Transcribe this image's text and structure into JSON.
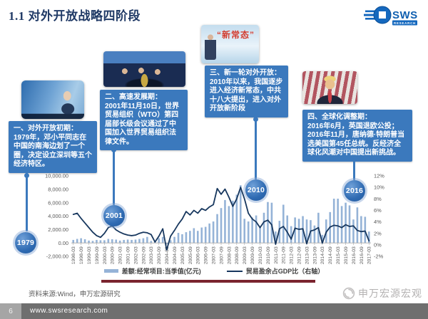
{
  "page": {
    "title": "1.1 对外开放战略四阶段",
    "source_note": "资料来源:Wind，申万宏源研究",
    "brand": {
      "logo_text": "SWS",
      "logo_sub": "RESEARCH",
      "wechat_name": "申万宏源宏观"
    },
    "footer": {
      "page_number": "6",
      "url": "www.swsresearch.com"
    }
  },
  "stages": [
    {
      "year": "1979",
      "heading": "一、对外开放初期：",
      "body": "1979年，邓小平同志在中国的南海边划了一个圈，决定设立深圳等五个经济特区。",
      "photo": "deng-xiaoping-shenzhen"
    },
    {
      "year": "2001",
      "heading": "二、高速发展期：",
      "body": "2001年11月10日，世界贸易组织（WTO）第四届部长级会议通过了中国加入世界贸易组织法律文件。",
      "photo": "china-joins-wto-ceremony"
    },
    {
      "year": "2010",
      "heading": "三、新一轮对外开放：",
      "body": "2010年以来，我国逐步进入经济新常态，中共十八大提出，进入对外开放新阶段",
      "photo": "new-normal-illustration",
      "photo_caption": "“新常态”"
    },
    {
      "year": "2016",
      "heading": "四、全球化调整期：",
      "body": "2016年6月，英国退欧公投；2016年11月，唐纳德·特朗普当选美国第45任总统。反经济全球化风潮对中国提出新挑战。",
      "photo": "trump-us-flag"
    }
  ],
  "chart_data": {
    "type": "bar",
    "subtype": "bar+line dual-axis combo",
    "gridlines": false,
    "legend_position": "bottom",
    "x_tick_every": 2,
    "timeline_markers": [
      "1979",
      "2001",
      "2010",
      "2016"
    ],
    "x": [
      "1998-03",
      "1998-06",
      "1998-09",
      "1998-12",
      "1999-03",
      "1999-06",
      "1999-09",
      "1999-12",
      "2000-03",
      "2000-06",
      "2000-09",
      "2000-12",
      "2001-03",
      "2001-06",
      "2001-09",
      "2001-12",
      "2002-03",
      "2002-06",
      "2002-09",
      "2002-12",
      "2003-03",
      "2003-06",
      "2003-09",
      "2003-12",
      "2004-03",
      "2004-06",
      "2004-09",
      "2004-12",
      "2005-03",
      "2005-06",
      "2005-09",
      "2005-12",
      "2006-03",
      "2006-06",
      "2006-09",
      "2006-12",
      "2007-03",
      "2007-06",
      "2007-09",
      "2007-12",
      "2008-03",
      "2008-06",
      "2008-09",
      "2008-12",
      "2009-03",
      "2009-06",
      "2009-09",
      "2009-12",
      "2010-03",
      "2010-06",
      "2010-09",
      "2010-12",
      "2011-03",
      "2011-06",
      "2011-09",
      "2011-12",
      "2012-03",
      "2012-06",
      "2012-09",
      "2012-12",
      "2013-03",
      "2013-06",
      "2013-09",
      "2013-12",
      "2014-03",
      "2014-06",
      "2014-09",
      "2014-12",
      "2015-03",
      "2015-06",
      "2015-09",
      "2015-12",
      "2016-03",
      "2016-06",
      "2016-09",
      "2016-12",
      "2017-03"
    ],
    "series": [
      {
        "name": "差额:经常项目:当季值(亿元)",
        "type": "bar",
        "axis": "left",
        "color": "#95b3d7",
        "values": [
          450,
          600,
          700,
          550,
          350,
          300,
          450,
          400,
          400,
          600,
          550,
          500,
          350,
          450,
          500,
          450,
          500,
          600,
          700,
          900,
          300,
          250,
          700,
          900,
          -200,
          400,
          900,
          1500,
          1300,
          1600,
          1800,
          2200,
          1800,
          2300,
          2400,
          2900,
          3200,
          4300,
          5200,
          6400,
          5500,
          6300,
          7200,
          8600,
          3600,
          3200,
          3800,
          4100,
          2400,
          4500,
          6100,
          6000,
          1700,
          3300,
          5700,
          4100,
          2500,
          3800,
          3600,
          4000,
          3500,
          3400,
          2600,
          4500,
          1200,
          3500,
          4600,
          6600,
          6600,
          5500,
          6000,
          5600,
          3500,
          5300,
          4000,
          3900,
          1700
        ]
      },
      {
        "name": "贸易盈余占GDP比（右轴）",
        "type": "line",
        "axis": "right",
        "color": "#17375e",
        "values": [
          5.3,
          5.5,
          4.6,
          3.8,
          3.0,
          2.2,
          1.6,
          1.3,
          2.0,
          3.0,
          3.3,
          2.6,
          2.2,
          1.9,
          1.7,
          1.6,
          1.7,
          2.0,
          2.2,
          2.1,
          1.8,
          0.5,
          1.5,
          2.8,
          -0.9,
          1.5,
          2.5,
          3.6,
          4.5,
          5.8,
          5.2,
          6.0,
          5.5,
          6.3,
          6.0,
          6.6,
          7.0,
          9.8,
          8.8,
          9.7,
          8.3,
          6.7,
          8.0,
          10.0,
          8.0,
          5.5,
          4.5,
          4.0,
          3.0,
          4.0,
          4.3,
          3.5,
          0.1,
          2.8,
          3.2,
          2.2,
          1.0,
          2.9,
          2.7,
          2.8,
          0.2,
          2.4,
          2.6,
          3.0,
          0.3,
          2.2,
          3.1,
          3.4,
          3.3,
          3.0,
          3.5,
          3.2,
          3.3,
          2.5,
          2.3,
          2.4,
          0.7
        ]
      }
    ],
    "left_axis": {
      "label": "亿元",
      "tick_values": [
        10000,
        8000,
        6000,
        4000,
        2000,
        0,
        -2000
      ],
      "tick_labels": [
        "10,000.00",
        "8,000.00",
        "6,000.00",
        "4,000.00",
        "2,000.00",
        "0.00",
        "-2,000.00"
      ]
    },
    "right_axis": {
      "label": "%",
      "tick_values": [
        12,
        10,
        8,
        6,
        4,
        2,
        0,
        -2
      ],
      "tick_labels": [
        "12%",
        "10%",
        "8%",
        "6%",
        "4%",
        "2%",
        "0%",
        "-2%"
      ]
    }
  }
}
